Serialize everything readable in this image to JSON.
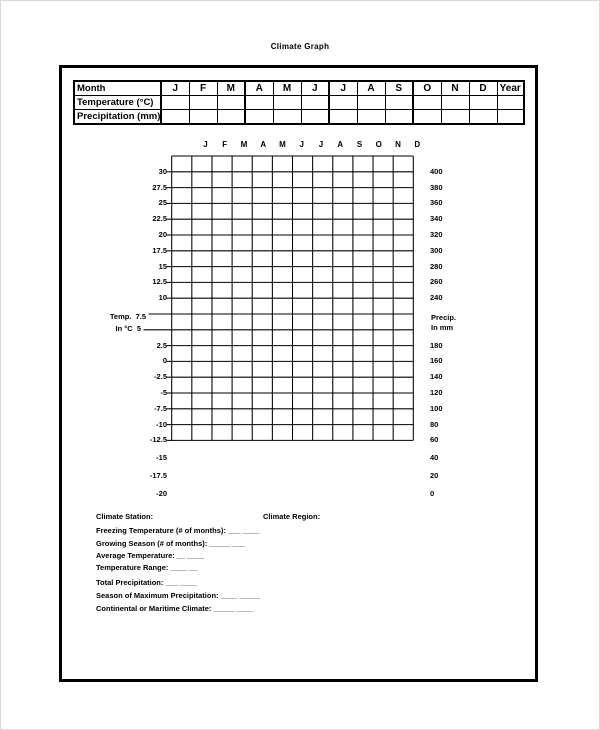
{
  "title": "Climate Graph",
  "months": [
    "J",
    "F",
    "M",
    "A",
    "M",
    "J",
    "J",
    "A",
    "S",
    "O",
    "N",
    "D"
  ],
  "data_table": {
    "month_header": "Month",
    "year_header": "Year",
    "row_labels": [
      "Temperature (°C)",
      "Precipitation (mm)"
    ]
  },
  "graph": {
    "grid": {
      "columns": 12,
      "rows": 18
    },
    "left_axis_labels": [
      "30",
      "27.5",
      "25",
      "22.5",
      "20",
      "17.5",
      "15",
      "12.5",
      "10",
      "Temp.  7.5",
      "In °C  5",
      "2.5",
      "0",
      "-2.5",
      "-5",
      "-7.5",
      "-10",
      "-12.5",
      "-15",
      "-17.5",
      "-20"
    ],
    "right_axis_labels": [
      "400",
      "380",
      "360",
      "340",
      "320",
      "300",
      "280",
      "260",
      "240",
      "Precip.",
      "In mm",
      "180",
      "160",
      "140",
      "120",
      "100",
      "80",
      "60",
      "40",
      "20",
      "0"
    ]
  },
  "fields": {
    "station_label": "Climate Station:",
    "region_label": "Climate Region:",
    "rows": [
      {
        "label": "Freezing Temperature (# of months):",
        "blank": "___ ____"
      },
      {
        "label": "Growing Season (# of months):",
        "blank": "_____ ___"
      },
      {
        "label": "Average Temperature:",
        "blank": "__ ____"
      },
      {
        "label": "Temperature Range:",
        "blank": "____ __"
      },
      {
        "label": "Total Precipitation:",
        "blank": "___ ____"
      },
      {
        "label": "Season of Maximum Precipitation:",
        "blank": "____ _____"
      },
      {
        "label": "Continental or Maritime Climate:",
        "blank": "_____ ____"
      }
    ]
  }
}
